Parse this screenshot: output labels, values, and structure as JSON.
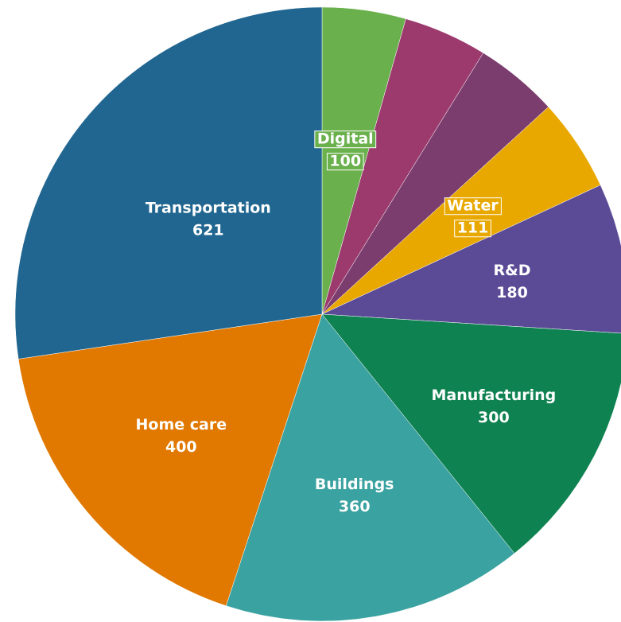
{
  "chart_data": {
    "type": "pie",
    "title": "",
    "slices": [
      {
        "label": "Digital",
        "value": 100,
        "color": "#6ab04c"
      },
      {
        "label": "",
        "value": 100,
        "color": "#9c3a6e"
      },
      {
        "label": "",
        "value": 100,
        "color": "#7b3d6e"
      },
      {
        "label": "Water",
        "value": 111,
        "color": "#e8a800"
      },
      {
        "label": "R&D",
        "value": 180,
        "color": "#5b4b96"
      },
      {
        "label": "Manufacturing",
        "value": 300,
        "color": "#0f8251"
      },
      {
        "label": "Buildings",
        "value": 360,
        "color": "#3aa2a0"
      },
      {
        "label": "Home care",
        "value": 400,
        "color": "#e17800"
      },
      {
        "label": "Transportation",
        "value": 621,
        "color": "#216690"
      }
    ],
    "label_color": "#ffffff",
    "label_highlight_colors": {
      "Digital": "#6ab04c",
      "Water": "#e8a800"
    },
    "start_angle_degrees": 0,
    "direction": "clockwise"
  }
}
